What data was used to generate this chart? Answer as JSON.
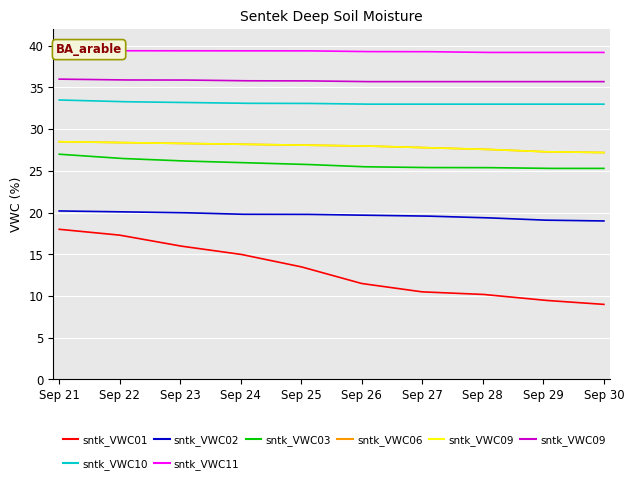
{
  "title": "Sentek Deep Soil Moisture",
  "ylabel": "VWC (%)",
  "ylim": [
    0,
    42
  ],
  "yticks": [
    0,
    5,
    10,
    15,
    20,
    25,
    30,
    35,
    40
  ],
  "x_labels": [
    "Sep 21",
    "Sep 22",
    "Sep 23",
    "Sep 24",
    "Sep 25",
    "Sep 26",
    "Sep 27",
    "Sep 28",
    "Sep 29",
    "Sep 30"
  ],
  "background_color": "#e8e8e8",
  "annotation_text": "BA_arable",
  "annotation_color": "#8B0000",
  "annotation_bg": "#f5f5dc",
  "series": [
    {
      "label": "sntk_VWC01",
      "color": "#ff0000",
      "profile": [
        18.0,
        17.3,
        16.0,
        15.0,
        13.5,
        11.5,
        10.5,
        10.2,
        9.5,
        9.0
      ]
    },
    {
      "label": "sntk_VWC02",
      "color": "#0000cc",
      "profile": [
        20.2,
        20.1,
        20.0,
        19.8,
        19.8,
        19.7,
        19.6,
        19.4,
        19.1,
        19.0
      ]
    },
    {
      "label": "sntk_VWC03",
      "color": "#00cc00",
      "profile": [
        27.0,
        26.5,
        26.2,
        26.0,
        25.8,
        25.5,
        25.4,
        25.4,
        25.3,
        25.3
      ]
    },
    {
      "label": "sntk_VWC06",
      "color": "#ff9900",
      "profile": [
        28.5,
        28.4,
        28.3,
        28.2,
        28.1,
        28.0,
        27.8,
        27.6,
        27.3,
        27.2
      ]
    },
    {
      "label": "sntk_VWC09",
      "color": "#ffff00",
      "profile": [
        28.5,
        28.4,
        28.3,
        28.2,
        28.1,
        28.0,
        27.8,
        27.6,
        27.3,
        27.2
      ]
    },
    {
      "label": "sntk_VWC09",
      "color": "#cc00cc",
      "profile": [
        36.0,
        35.9,
        35.9,
        35.8,
        35.8,
        35.7,
        35.7,
        35.7,
        35.7,
        35.7
      ]
    },
    {
      "label": "sntk_VWC10",
      "color": "#00cccc",
      "profile": [
        33.5,
        33.3,
        33.2,
        33.1,
        33.1,
        33.0,
        33.0,
        33.0,
        33.0,
        33.0
      ]
    },
    {
      "label": "sntk_VWC11",
      "color": "#ff00ff",
      "profile": [
        39.5,
        39.4,
        39.4,
        39.4,
        39.4,
        39.3,
        39.3,
        39.2,
        39.2,
        39.2
      ]
    }
  ],
  "legend_row1": [
    "sntk_VWC01",
    "sntk_VWC02",
    "sntk_VWC03",
    "sntk_VWC06",
    "sntk_VWC09",
    "sntk_VWC09"
  ],
  "legend_row2": [
    "sntk_VWC10",
    "sntk_VWC11"
  ]
}
